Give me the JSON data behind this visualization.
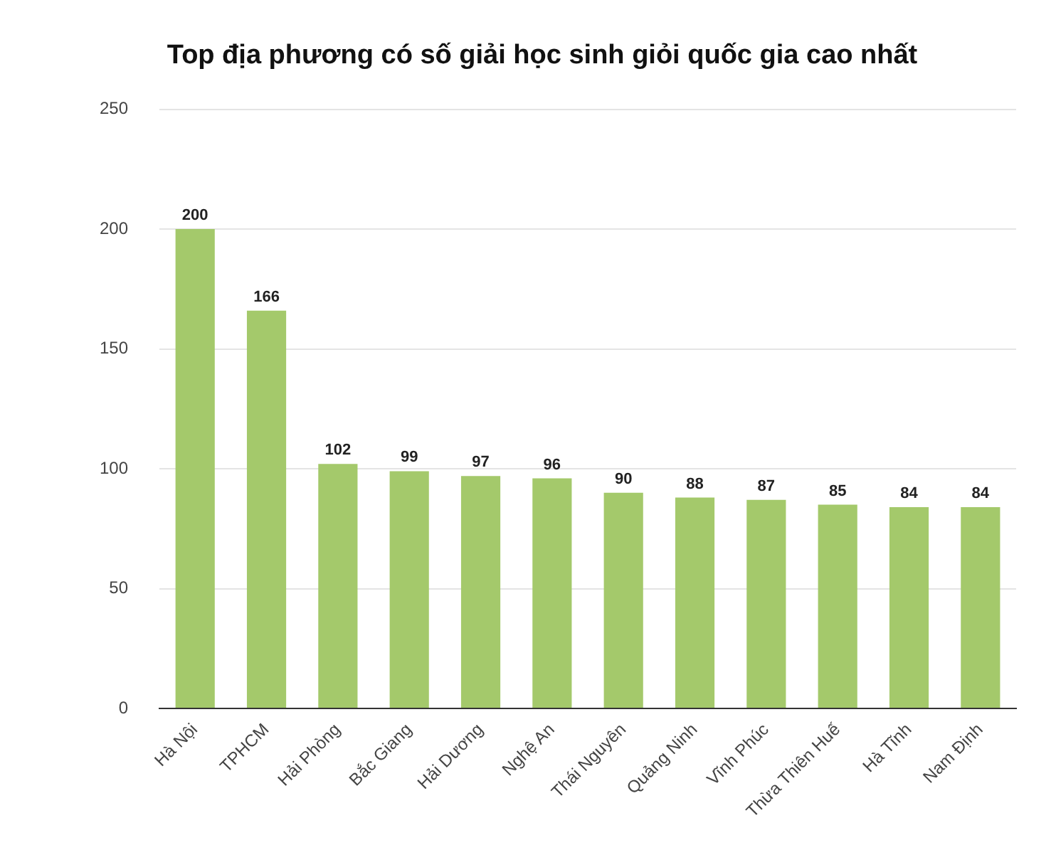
{
  "chart_data": {
    "type": "bar",
    "title": "Top địa phương có số giải học sinh giỏi quốc gia cao nhất",
    "categories": [
      "Hà Nội",
      "TPHCM",
      "Hải Phòng",
      "Bắc Giang",
      "Hải Dương",
      "Nghệ An",
      "Thái Nguyên",
      "Quảng Ninh",
      "Vĩnh Phúc",
      "Thừa Thiên Huế",
      "Hà Tĩnh",
      "Nam Định"
    ],
    "values": [
      200,
      166,
      102,
      99,
      97,
      96,
      90,
      88,
      87,
      85,
      84,
      84
    ],
    "color": "#a4c96b",
    "ylim": [
      0,
      250
    ],
    "yticks": [
      0,
      50,
      100,
      150,
      200,
      250
    ],
    "grid": "y",
    "data_labels": true,
    "legend": false
  }
}
